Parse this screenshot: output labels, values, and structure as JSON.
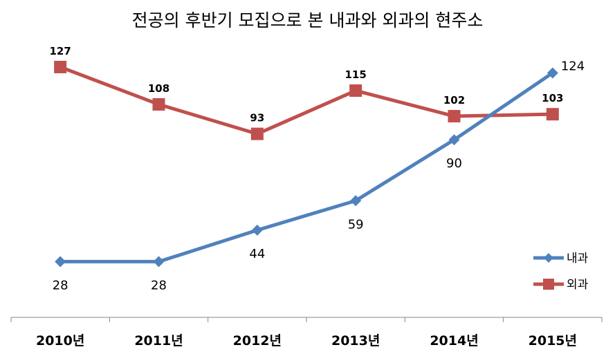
{
  "chart_data": {
    "type": "line",
    "title": "전공의 후반기 모집으로 본 내과와 외과의 현주소",
    "categories": [
      "2010년",
      "2011년",
      "2012년",
      "2013년",
      "2014년",
      "2015년"
    ],
    "series": [
      {
        "name": "내과",
        "values": [
          28,
          28,
          44,
          59,
          90,
          124
        ],
        "color": "#4F81BD",
        "marker": "diamond"
      },
      {
        "name": "외과",
        "values": [
          127,
          108,
          93,
          115,
          102,
          103
        ],
        "color": "#C0504D",
        "marker": "square"
      }
    ],
    "ylim": [
      0,
      140
    ],
    "grid": false,
    "legend_position": "right"
  }
}
